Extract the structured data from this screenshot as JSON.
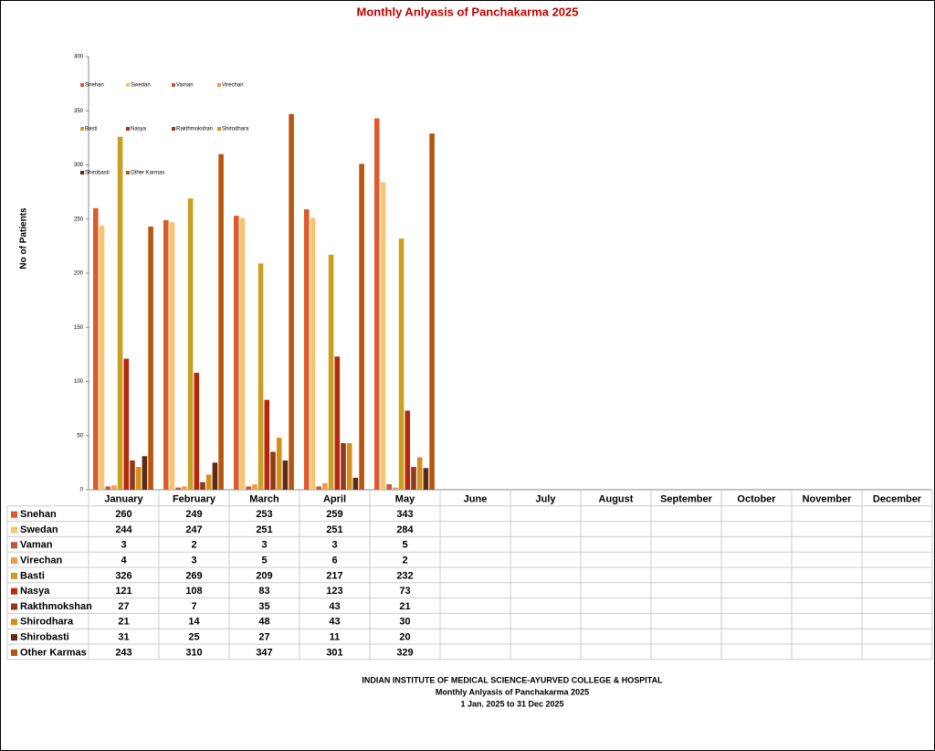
{
  "chart_data": {
    "type": "bar",
    "title": "Monthly Anlyasis of Panchakarma  2025",
    "y_label": "No of Patients",
    "categories": [
      "January",
      "February",
      "March",
      "April",
      "May",
      "June",
      "July",
      "August",
      "September",
      "October",
      "November",
      "December"
    ],
    "ylim": [
      0,
      400
    ],
    "yticks": [
      0,
      50,
      100,
      150,
      200,
      250,
      300,
      350,
      400
    ],
    "grid": false,
    "legend": "top-left",
    "series": [
      {
        "name": "Snehan",
        "color": "#de5a2c",
        "values": [
          260,
          249,
          253,
          259,
          343,
          null,
          null,
          null,
          null,
          null,
          null,
          null
        ]
      },
      {
        "name": "Swedan",
        "color": "#f8c470",
        "values": [
          244,
          247,
          251,
          251,
          284,
          null,
          null,
          null,
          null,
          null,
          null,
          null
        ]
      },
      {
        "name": "Vaman",
        "color": "#c0583a",
        "values": [
          3,
          2,
          3,
          3,
          5,
          null,
          null,
          null,
          null,
          null,
          null,
          null
        ]
      },
      {
        "name": "Virechan",
        "color": "#f19a45",
        "values": [
          4,
          3,
          5,
          6,
          2,
          null,
          null,
          null,
          null,
          null,
          null,
          null
        ]
      },
      {
        "name": "Basti",
        "color": "#c9a022",
        "values": [
          326,
          269,
          209,
          217,
          232,
          null,
          null,
          null,
          null,
          null,
          null,
          null
        ]
      },
      {
        "name": "Nasya",
        "color": "#b5280f",
        "values": [
          121,
          108,
          83,
          123,
          73,
          null,
          null,
          null,
          null,
          null,
          null,
          null
        ]
      },
      {
        "name": "Rakthmokshan",
        "color": "#8e3a1c",
        "values": [
          27,
          7,
          35,
          43,
          21,
          null,
          null,
          null,
          null,
          null,
          null,
          null
        ]
      },
      {
        "name": "Shirodhara",
        "color": "#d68f1b",
        "values": [
          21,
          14,
          48,
          43,
          30,
          null,
          null,
          null,
          null,
          null,
          null,
          null
        ]
      },
      {
        "name": "Shirobasti",
        "color": "#5e2a12",
        "values": [
          31,
          25,
          27,
          11,
          20,
          null,
          null,
          null,
          null,
          null,
          null,
          null
        ]
      },
      {
        "name": "Other Karmas",
        "color": "#b6560f",
        "values": [
          243,
          310,
          347,
          301,
          329,
          null,
          null,
          null,
          null,
          null,
          null,
          null
        ]
      }
    ]
  },
  "footer": {
    "lines": [
      "INDIAN INSTITUTE OF MEDICAL SCIENCE-AYURVED COLLEGE & HOSPITAL",
      "Monthly Anlyasis of Panchakarma  2025",
      "1 Jan. 2025 to 31 Dec 2025"
    ]
  }
}
